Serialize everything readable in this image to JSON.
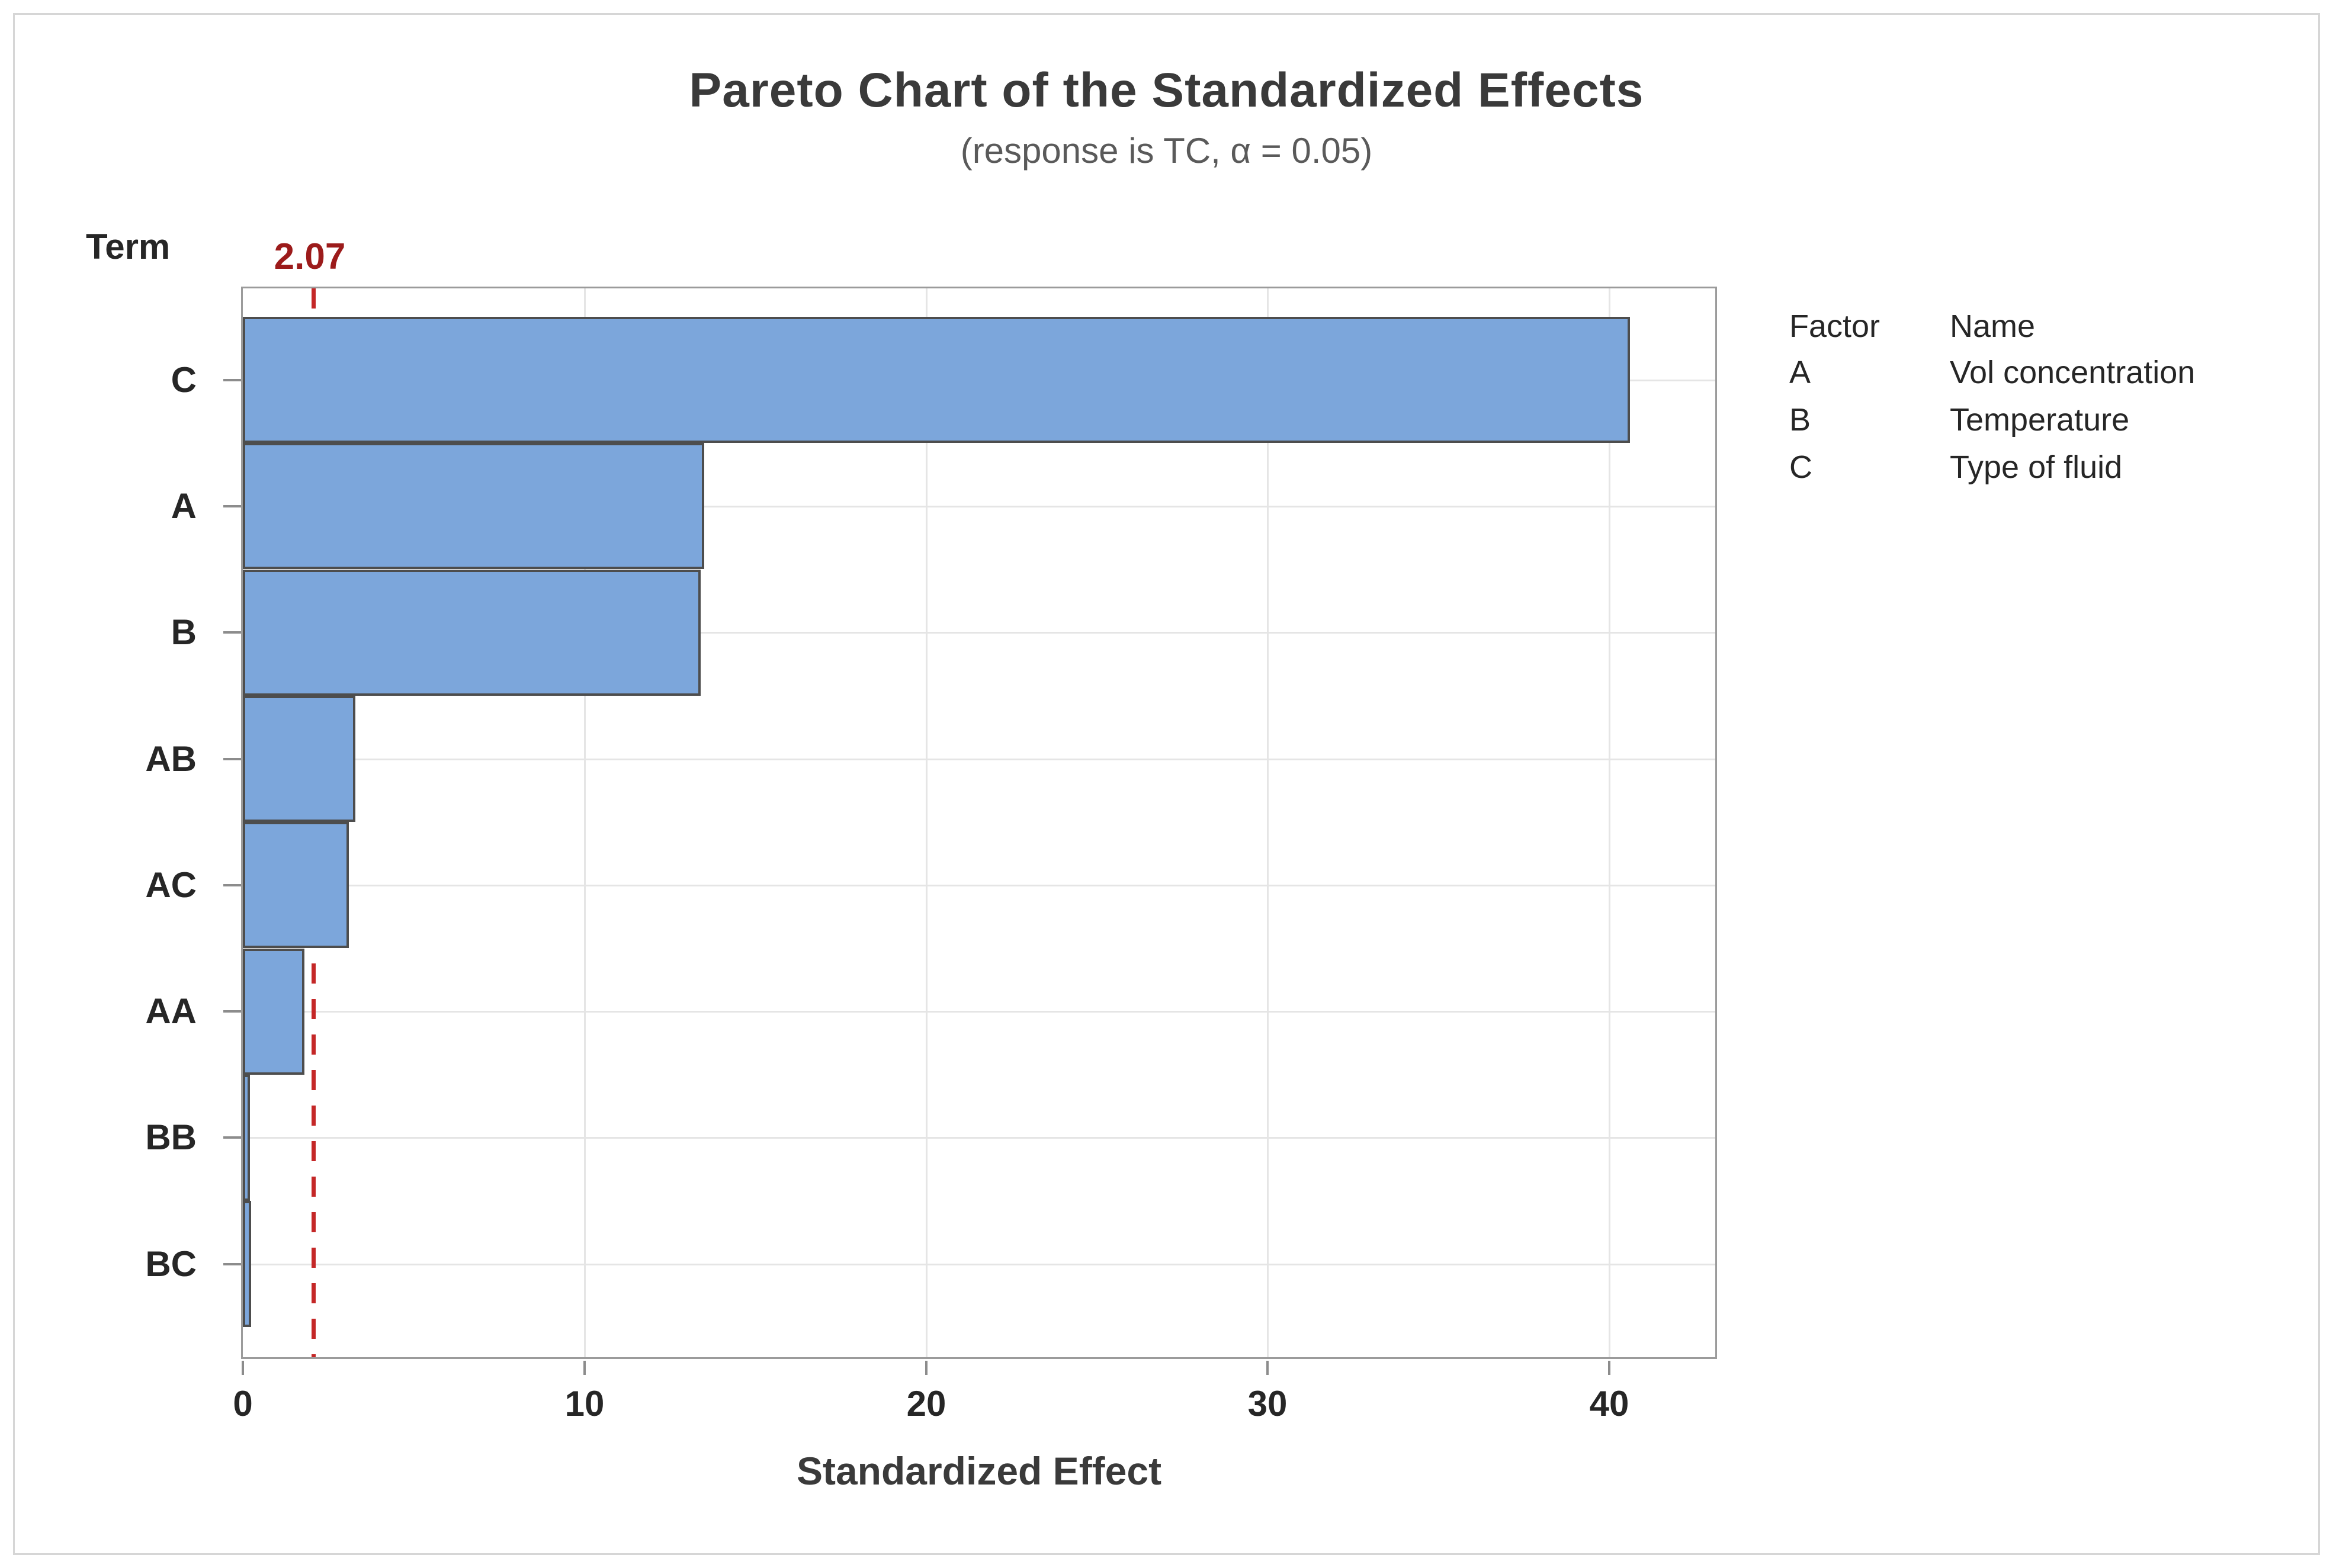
{
  "chart_data": {
    "type": "bar",
    "orientation": "horizontal",
    "title": "Pareto Chart of the Standardized Effects",
    "subtitle": "(response is TC, α = 0.05)",
    "term_label": "Term",
    "xlabel": "Standardized Effect",
    "categories": [
      "C",
      "A",
      "B",
      "AB",
      "AC",
      "AA",
      "BB",
      "BC"
    ],
    "values": [
      40.6,
      13.5,
      13.4,
      3.3,
      3.1,
      1.8,
      0.2,
      0.25
    ],
    "x_ticks": [
      "0",
      "10",
      "20",
      "30",
      "40"
    ],
    "x_tick_values": [
      0,
      10,
      20,
      30,
      40
    ],
    "xlim": [
      0,
      43.1
    ],
    "grid": "on",
    "reference_line": {
      "value": 2.07,
      "label": "2.07"
    },
    "legend": {
      "position": "right",
      "headers": [
        "Factor",
        "Name"
      ],
      "rows": [
        {
          "factor": "A",
          "name": "Vol concentration"
        },
        {
          "factor": "B",
          "name": "Temperature"
        },
        {
          "factor": "C",
          "name": "Type of fluid"
        }
      ]
    },
    "colors": {
      "bar_fill": "#7CA6DB",
      "bar_border": "#4D4D4D",
      "plot_frame": "#9B9B9B",
      "gridline": "#E5E5E5",
      "reference_line": "#C42727",
      "reference_label": "#9C1B1B",
      "title_text": "#3A3A3A",
      "subtitle_text": "#5A5A5A",
      "axis_text": "#262626",
      "tick_mark": "#8C8C8C",
      "figure_border": "#D6D6D6"
    }
  }
}
